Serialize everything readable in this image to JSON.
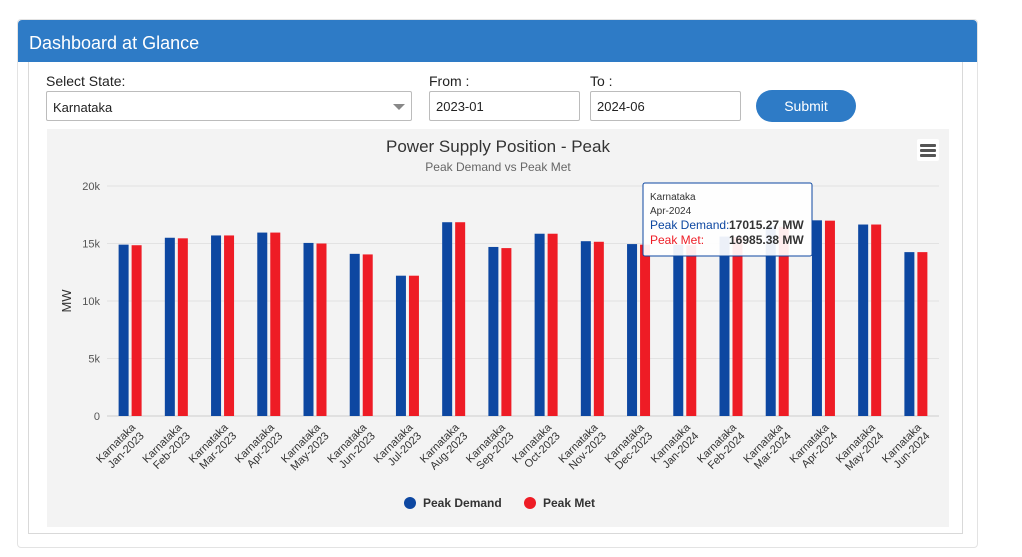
{
  "header": {
    "title": "Dashboard at Glance"
  },
  "filters": {
    "state_label": "Select State:",
    "state_value": "Karnataka",
    "from_label": "From :",
    "from_value": "2023-01",
    "to_label": "To :",
    "to_value": "2024-06",
    "submit_label": "Submit"
  },
  "chart_data": {
    "type": "bar",
    "title": "Power Supply Position - Peak",
    "subtitle": "Peak Demand vs Peak Met",
    "ylabel": "MW",
    "xlabel": "",
    "ylim": [
      0,
      20000
    ],
    "yticks": [
      0,
      5000,
      10000,
      15000,
      20000
    ],
    "ytick_labels": [
      "0",
      "5k",
      "10k",
      "15k",
      "20k"
    ],
    "grid": true,
    "legend_position": "bottom-center",
    "category_state": "Karnataka",
    "categories": [
      "Jan-2023",
      "Feb-2023",
      "Mar-2023",
      "Apr-2023",
      "May-2023",
      "Jun-2023",
      "Jul-2023",
      "Aug-2023",
      "Sep-2023",
      "Oct-2023",
      "Nov-2023",
      "Dec-2023",
      "Jan-2024",
      "Feb-2024",
      "Mar-2024",
      "Apr-2024",
      "May-2024",
      "Jun-2024"
    ],
    "series": [
      {
        "name": "Peak Demand",
        "color": "#0d47a1",
        "values": [
          14900,
          15500,
          15700,
          15950,
          15050,
          14100,
          12200,
          16850,
          14700,
          15850,
          15200,
          14950,
          14900,
          15600,
          16500,
          17015.27,
          16650,
          14250
        ]
      },
      {
        "name": "Peak Met",
        "color": "#ee1c25",
        "values": [
          14850,
          15450,
          15700,
          15950,
          15000,
          14050,
          12200,
          16850,
          14600,
          15850,
          15150,
          14900,
          14850,
          15550,
          16450,
          16985.38,
          16650,
          14250
        ]
      }
    ],
    "tooltip": {
      "state": "Karnataka",
      "period": "Apr-2024",
      "demand_label": "Peak Demand:",
      "demand_value": "17015.27 MW",
      "met_label": "Peak Met:",
      "met_value": "16985.38 MW"
    }
  }
}
